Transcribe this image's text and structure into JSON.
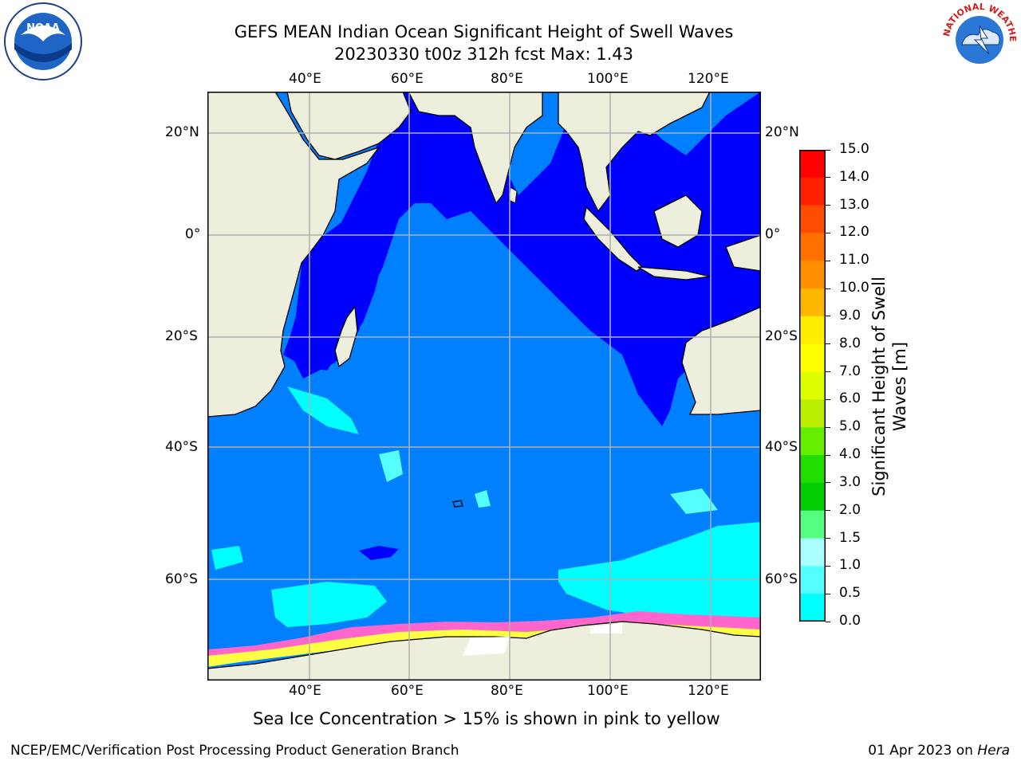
{
  "title_line1": "GEFS MEAN Indian Ocean Significant Height of Swell Waves",
  "title_line2": "20230330 t00z 312h fcst   Max: 1.43",
  "logos": {
    "left": "NOAA",
    "right": "NATIONAL WEATHER SERVICE"
  },
  "map": {
    "lon_ticks": [
      "40°E",
      "60°E",
      "80°E",
      "100°E",
      "120°E"
    ],
    "lat_ticks": [
      "20°N",
      "0°",
      "20°S",
      "40°S",
      "60°S"
    ],
    "ocean_color": "#0080ff",
    "land_color": "#eeeedd",
    "grid": true
  },
  "colorbar": {
    "label_line1": "Significant Height of Swell",
    "label_line2": "Waves [m]",
    "ticks": [
      "15.0",
      "14.0",
      "13.0",
      "12.0",
      "11.0",
      "10.0",
      "9.0",
      "8.0",
      "7.0",
      "6.0",
      "5.0",
      "4.0",
      "3.0",
      "2.0",
      "1.5",
      "1.0",
      "0.5",
      "0.0"
    ],
    "colors_top_to_bottom": [
      "#ff0000",
      "#ff2000",
      "#ff4d00",
      "#ff7000",
      "#ff9000",
      "#ffb800",
      "#ffee00",
      "#ffff00",
      "#ddff00",
      "#bbee00",
      "#66ee00",
      "#22dd00",
      "#00cc00",
      "#55ff80",
      "#aaffff",
      "#55ffff",
      "#00ffff",
      "#0080ff",
      "#0000ff"
    ]
  },
  "caption": "Sea Ice Concentration > 15% is shown in pink to yellow",
  "footer_left": "NCEP/EMC/Verification Post Processing Product Generation Branch",
  "footer_right_date": "01 Apr 2023 on ",
  "footer_right_host": "Hera"
}
